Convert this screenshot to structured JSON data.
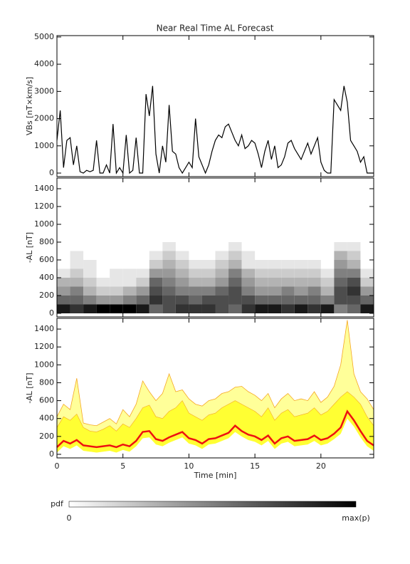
{
  "chart_data": [
    {
      "type": "line",
      "title": "Near Real Time AL Forecast",
      "ylabel": "VBs [nT×km/s]",
      "xlim": [
        0,
        24
      ],
      "ylim": [
        -130,
        5050
      ],
      "yticks": [
        0,
        1000,
        2000,
        3000,
        4000,
        5000
      ],
      "color": "#000000",
      "x": [
        0,
        0.25,
        0.5,
        0.75,
        1,
        1.25,
        1.5,
        1.75,
        2,
        2.25,
        2.5,
        2.75,
        3,
        3.25,
        3.5,
        3.75,
        4,
        4.25,
        4.5,
        4.75,
        5,
        5.25,
        5.5,
        5.75,
        6,
        6.25,
        6.5,
        6.75,
        7,
        7.25,
        7.5,
        7.75,
        8,
        8.25,
        8.5,
        8.75,
        9,
        9.25,
        9.5,
        9.75,
        10,
        10.25,
        10.5,
        10.75,
        11,
        11.25,
        11.5,
        11.75,
        12,
        12.25,
        12.5,
        12.75,
        13,
        13.25,
        13.5,
        13.75,
        14,
        14.25,
        14.5,
        14.75,
        15,
        15.25,
        15.5,
        15.75,
        16,
        16.25,
        16.5,
        16.75,
        17,
        17.25,
        17.5,
        17.75,
        18,
        18.25,
        18.5,
        18.75,
        19,
        19.25,
        19.5,
        19.75,
        20,
        20.25,
        20.5,
        20.75,
        21,
        21.25,
        21.5,
        21.75,
        22,
        22.25,
        22.5,
        22.75,
        23,
        23.25,
        23.5,
        23.75,
        24
      ],
      "values": [
        1200,
        2300,
        200,
        1200,
        1300,
        300,
        1000,
        50,
        0,
        100,
        50,
        100,
        1200,
        0,
        0,
        300,
        0,
        1800,
        0,
        200,
        0,
        1400,
        0,
        100,
        1300,
        0,
        0,
        2900,
        2100,
        3200,
        700,
        0,
        1000,
        400,
        2500,
        800,
        700,
        200,
        0,
        200,
        400,
        200,
        2000,
        600,
        300,
        0,
        300,
        800,
        1200,
        1400,
        1300,
        1700,
        1800,
        1500,
        1200,
        1000,
        1400,
        900,
        1000,
        1200,
        1100,
        700,
        200,
        800,
        1200,
        500,
        1000,
        200,
        300,
        600,
        1100,
        1200,
        900,
        700,
        500,
        800,
        1100,
        700,
        1000,
        1300,
        400,
        100,
        0,
        0,
        2700,
        2500,
        2300,
        3200,
        2600,
        1200,
        1000,
        800,
        400,
        600,
        0,
        0,
        0
      ]
    },
    {
      "type": "heatmap",
      "ylabel": "-AL [nT]",
      "xlim": [
        0,
        24
      ],
      "ylim": [
        -40,
        1520
      ],
      "yticks": [
        0,
        200,
        400,
        600,
        800,
        1000,
        1200,
        1400
      ],
      "x_bins": [
        0,
        1,
        2,
        3,
        4,
        5,
        6,
        7,
        8,
        9,
        10,
        11,
        12,
        13,
        14,
        15,
        16,
        17,
        18,
        19,
        20,
        21,
        22,
        23,
        24
      ],
      "y_bins": [
        0,
        100,
        200,
        300,
        400,
        500,
        600,
        700,
        800
      ],
      "values": [
        [
          0.9,
          0.6,
          0.4,
          0.3,
          0.1,
          0,
          0,
          0
        ],
        [
          0.8,
          0.6,
          0.5,
          0.3,
          0.2,
          0.1,
          0.1,
          0
        ],
        [
          0.9,
          0.5,
          0.3,
          0.2,
          0.1,
          0.1,
          0,
          0
        ],
        [
          1,
          0.4,
          0.2,
          0.1,
          0,
          0,
          0,
          0
        ],
        [
          1,
          0.4,
          0.2,
          0.1,
          0.1,
          0,
          0,
          0
        ],
        [
          1,
          0.5,
          0.3,
          0.1,
          0.1,
          0,
          0,
          0
        ],
        [
          0.9,
          0.6,
          0.4,
          0.2,
          0.1,
          0,
          0,
          0
        ],
        [
          0.6,
          0.8,
          0.7,
          0.6,
          0.4,
          0.2,
          0.1,
          0
        ],
        [
          0.7,
          0.7,
          0.6,
          0.5,
          0.4,
          0.3,
          0.2,
          0.1
        ],
        [
          0.8,
          0.7,
          0.5,
          0.4,
          0.3,
          0.2,
          0.1,
          0
        ],
        [
          0.8,
          0.6,
          0.5,
          0.3,
          0.2,
          0.1,
          0,
          0
        ],
        [
          0.8,
          0.7,
          0.5,
          0.3,
          0.2,
          0.1,
          0,
          0
        ],
        [
          0.7,
          0.7,
          0.6,
          0.4,
          0.3,
          0.2,
          0.1,
          0
        ],
        [
          0.6,
          0.7,
          0.7,
          0.6,
          0.5,
          0.3,
          0.2,
          0.1
        ],
        [
          0.8,
          0.7,
          0.5,
          0.4,
          0.3,
          0.1,
          0.1,
          0
        ],
        [
          0.9,
          0.6,
          0.4,
          0.3,
          0.2,
          0.1,
          0,
          0
        ],
        [
          0.9,
          0.6,
          0.4,
          0.3,
          0.2,
          0.1,
          0,
          0
        ],
        [
          0.8,
          0.6,
          0.5,
          0.3,
          0.2,
          0.1,
          0,
          0
        ],
        [
          0.9,
          0.6,
          0.4,
          0.3,
          0.2,
          0.1,
          0,
          0
        ],
        [
          0.8,
          0.6,
          0.5,
          0.3,
          0.2,
          0.1,
          0,
          0
        ],
        [
          0.9,
          0.5,
          0.3,
          0.2,
          0.1,
          0,
          0,
          0
        ],
        [
          0.5,
          0.7,
          0.7,
          0.6,
          0.5,
          0.4,
          0.3,
          0.1
        ],
        [
          0.6,
          0.7,
          0.8,
          0.7,
          0.5,
          0.3,
          0.2,
          0.1
        ],
        [
          0.9,
          0.6,
          0.4,
          0.2,
          0.1,
          0,
          0,
          0
        ]
      ]
    },
    {
      "type": "band",
      "ylabel": "-AL [nT]",
      "xlabel": "Time [min]",
      "xlim": [
        0,
        24
      ],
      "ylim": [
        -40,
        1520
      ],
      "xticks": [
        0,
        5,
        10,
        15,
        20
      ],
      "yticks": [
        0,
        200,
        400,
        600,
        800,
        1000,
        1200,
        1400
      ],
      "x": [
        0,
        0.5,
        1,
        1.5,
        2,
        2.5,
        3,
        3.5,
        4,
        4.5,
        5,
        5.5,
        6,
        6.5,
        7,
        7.5,
        8,
        8.5,
        9,
        9.5,
        10,
        10.5,
        11,
        11.5,
        12,
        12.5,
        13,
        13.5,
        14,
        14.5,
        15,
        15.5,
        16,
        16.5,
        17,
        17.5,
        18,
        18.5,
        19,
        19.5,
        20,
        20.5,
        21,
        21.5,
        22,
        22.5,
        23,
        23.5,
        24
      ],
      "max": {
        "color": "#f5a623",
        "values": [
          420,
          560,
          500,
          850,
          350,
          330,
          320,
          360,
          400,
          340,
          500,
          420,
          560,
          820,
          700,
          600,
          680,
          900,
          700,
          720,
          620,
          560,
          540,
          600,
          620,
          680,
          700,
          750,
          760,
          700,
          660,
          600,
          680,
          520,
          620,
          680,
          600,
          620,
          600,
          700,
          580,
          640,
          760,
          1000,
          1500,
          900,
          700,
          620,
          500
        ]
      },
      "upper": {
        "color": "#ffff33",
        "values": [
          300,
          420,
          380,
          450,
          300,
          260,
          250,
          280,
          320,
          260,
          340,
          300,
          400,
          520,
          550,
          420,
          400,
          480,
          520,
          600,
          460,
          420,
          380,
          440,
          460,
          520,
          560,
          600,
          560,
          520,
          480,
          420,
          520,
          380,
          460,
          500,
          420,
          440,
          460,
          520,
          440,
          480,
          560,
          640,
          700,
          640,
          560,
          420,
          320
        ]
      },
      "lower": {
        "color": "#ffff33",
        "values": [
          20,
          90,
          60,
          100,
          40,
          30,
          20,
          30,
          40,
          20,
          50,
          30,
          90,
          180,
          190,
          110,
          90,
          130,
          160,
          190,
          120,
          100,
          60,
          110,
          120,
          150,
          180,
          250,
          200,
          160,
          140,
          100,
          150,
          60,
          120,
          140,
          90,
          100,
          110,
          150,
          100,
          120,
          170,
          230,
          400,
          310,
          190,
          90,
          40
        ]
      },
      "median": {
        "color": "#ee1111",
        "values": [
          80,
          150,
          120,
          160,
          100,
          90,
          80,
          90,
          100,
          80,
          110,
          90,
          150,
          250,
          260,
          170,
          150,
          190,
          220,
          250,
          180,
          160,
          120,
          170,
          180,
          210,
          240,
          320,
          260,
          220,
          200,
          160,
          210,
          120,
          180,
          200,
          150,
          160,
          170,
          210,
          160,
          180,
          230,
          300,
          480,
          380,
          260,
          150,
          100
        ]
      }
    }
  ],
  "colorbar": {
    "label": "pdf",
    "min_label": "0",
    "max_label": "max(p)"
  }
}
